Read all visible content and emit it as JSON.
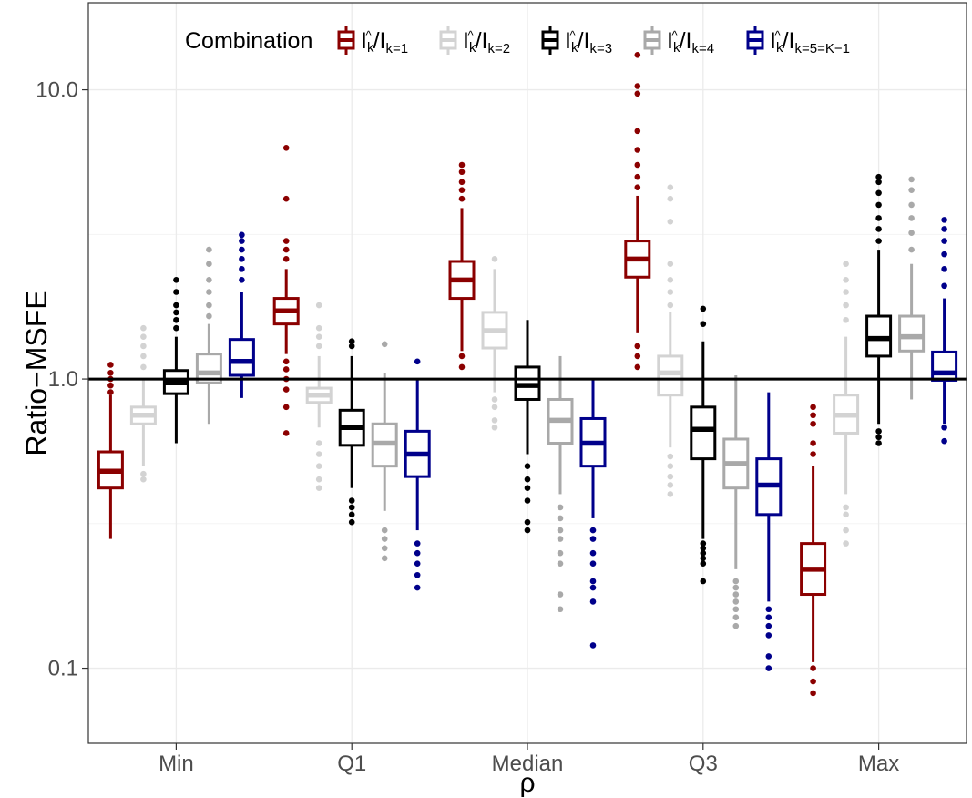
{
  "chart_data": {
    "type": "boxplot",
    "title": "",
    "xlabel": "ρ",
    "ylabel": "Ratio−MSFE",
    "yscale": "log10",
    "ylim": [
      0.055,
      20
    ],
    "yticks": [
      0.1,
      1.0,
      10.0
    ],
    "ytick_labels": [
      "0.1",
      "1.0",
      "10.0"
    ],
    "reference_line": 1.0,
    "categories": [
      "Min",
      "Q1",
      "Median",
      "Q3",
      "Max"
    ],
    "legend": {
      "title": "Combination",
      "position": "top",
      "entries": [
        {
          "base": "I",
          "hat_sup": "k",
          "sep": "/",
          "denom": "I",
          "sub": "k=1"
        },
        {
          "base": "I",
          "hat_sup": "k",
          "sep": "/",
          "denom": "I",
          "sub": "k=2"
        },
        {
          "base": "I",
          "hat_sup": "k",
          "sep": "/",
          "denom": "I",
          "sub": "k=3"
        },
        {
          "base": "I",
          "hat_sup": "k",
          "sep": "/",
          "denom": "I",
          "sub": "k=4"
        },
        {
          "base": "I",
          "hat_sup": "k",
          "sep": "/",
          "denom": "I",
          "sub": "k=5=K−1"
        }
      ]
    },
    "series": [
      {
        "name": "Î_k/I_{k=1}",
        "color": "#8b0000",
        "boxes": [
          {
            "category": "Min",
            "whisker_low": 0.28,
            "q1": 0.42,
            "median": 0.48,
            "q3": 0.56,
            "whisker_high": 0.88,
            "outliers": [
              0.9,
              0.95,
              1.0,
              1.05,
              1.12
            ]
          },
          {
            "category": "Q1",
            "whisker_low": 1.22,
            "q1": 1.55,
            "median": 1.72,
            "q3": 1.9,
            "whisker_high": 2.4,
            "outliers": [
              0.65,
              0.8,
              0.92,
              1.0,
              1.08,
              1.15,
              2.6,
              2.8,
              3.0,
              4.2,
              6.3
            ]
          },
          {
            "category": "Median",
            "whisker_low": 1.25,
            "q1": 1.9,
            "median": 2.2,
            "q3": 2.55,
            "whisker_high": 3.9,
            "outliers": [
              1.1,
              1.2,
              4.2,
              4.5,
              4.8,
              5.2,
              5.5
            ]
          },
          {
            "category": "Q3",
            "whisker_low": 1.45,
            "q1": 2.25,
            "median": 2.6,
            "q3": 3.0,
            "whisker_high": 4.3,
            "outliers": [
              1.1,
              1.2,
              1.3,
              4.6,
              5.0,
              5.5,
              6.2,
              7.2,
              9.7,
              10.3,
              13.2
            ]
          },
          {
            "category": "Max",
            "whisker_low": 0.105,
            "q1": 0.18,
            "median": 0.22,
            "q3": 0.27,
            "whisker_high": 0.5,
            "outliers": [
              0.082,
              0.09,
              0.1,
              0.55,
              0.6,
              0.7,
              0.75,
              0.8
            ]
          }
        ]
      },
      {
        "name": "Î_k/I_{k=2}",
        "color": "#d3d3d3",
        "boxes": [
          {
            "category": "Min",
            "whisker_low": 0.5,
            "q1": 0.7,
            "median": 0.75,
            "q3": 0.8,
            "whisker_high": 1.0,
            "outliers": [
              0.45,
              0.47,
              1.1,
              1.2,
              1.3,
              1.4,
              1.5
            ]
          },
          {
            "category": "Q1",
            "whisker_low": 0.68,
            "q1": 0.83,
            "median": 0.88,
            "q3": 0.93,
            "whisker_high": 1.2,
            "outliers": [
              0.42,
              0.45,
              0.5,
              0.55,
              0.6,
              1.3,
              1.4,
              1.5,
              1.8
            ]
          },
          {
            "category": "Median",
            "whisker_low": 0.9,
            "q1": 1.28,
            "median": 1.47,
            "q3": 1.7,
            "whisker_high": 2.4,
            "outliers": [
              0.68,
              0.72,
              0.8,
              0.85,
              2.6
            ]
          },
          {
            "category": "Q3",
            "whisker_low": 0.58,
            "q1": 0.88,
            "median": 1.05,
            "q3": 1.2,
            "whisker_high": 1.7,
            "outliers": [
              0.4,
              0.43,
              0.46,
              0.5,
              0.54,
              1.8,
              2.0,
              2.2,
              2.5,
              3.5,
              4.2,
              4.6
            ]
          },
          {
            "category": "Max",
            "whisker_low": 0.4,
            "q1": 0.65,
            "median": 0.75,
            "q3": 0.88,
            "whisker_high": 1.4,
            "outliers": [
              0.27,
              0.3,
              0.34,
              0.36,
              1.6,
              1.8,
              2.0,
              2.2,
              2.5
            ]
          }
        ]
      },
      {
        "name": "Î_k/I_{k=3}",
        "color": "#000000",
        "boxes": [
          {
            "category": "Min",
            "whisker_low": 0.6,
            "q1": 0.89,
            "median": 0.97,
            "q3": 1.07,
            "whisker_high": 1.4,
            "outliers": [
              1.5,
              1.6,
              1.7,
              1.8,
              2.0,
              2.2
            ]
          },
          {
            "category": "Q1",
            "whisker_low": 0.42,
            "q1": 0.59,
            "median": 0.68,
            "q3": 0.78,
            "whisker_high": 1.2,
            "outliers": [
              0.32,
              0.34,
              0.36,
              0.38,
              1.3,
              1.35
            ]
          },
          {
            "category": "Median",
            "whisker_low": 0.55,
            "q1": 0.85,
            "median": 0.95,
            "q3": 1.1,
            "whisker_high": 1.6,
            "outliers": [
              0.3,
              0.32,
              0.38,
              0.42,
              0.45,
              0.5
            ]
          },
          {
            "category": "Q3",
            "whisker_low": 0.28,
            "q1": 0.53,
            "median": 0.67,
            "q3": 0.8,
            "whisker_high": 1.35,
            "outliers": [
              0.2,
              0.23,
              0.24,
              0.25,
              0.26,
              0.27,
              1.55,
              1.75
            ]
          },
          {
            "category": "Max",
            "whisker_low": 0.7,
            "q1": 1.2,
            "median": 1.38,
            "q3": 1.65,
            "whisker_high": 2.8,
            "outliers": [
              0.6,
              0.63,
              0.66,
              3.0,
              3.3,
              3.6,
              4.0,
              4.4,
              4.8,
              5.0
            ]
          }
        ]
      },
      {
        "name": "Î_k/I_{k=4}",
        "color": "#a9a9a9",
        "boxes": [
          {
            "category": "Min",
            "whisker_low": 0.7,
            "q1": 0.97,
            "median": 1.05,
            "q3": 1.22,
            "whisker_high": 1.55,
            "outliers": [
              1.65,
              1.8,
              2.0,
              2.2,
              2.5,
              2.8
            ]
          },
          {
            "category": "Q1",
            "whisker_low": 0.35,
            "q1": 0.5,
            "median": 0.6,
            "q3": 0.7,
            "whisker_high": 1.05,
            "outliers": [
              0.24,
              0.26,
              0.28,
              0.3,
              1.32
            ]
          },
          {
            "category": "Median",
            "whisker_low": 0.4,
            "q1": 0.6,
            "median": 0.72,
            "q3": 0.85,
            "whisker_high": 1.2,
            "outliers": [
              0.16,
              0.18,
              0.23,
              0.25,
              0.28,
              0.3,
              0.33,
              0.36
            ]
          },
          {
            "category": "Q3",
            "whisker_low": 0.22,
            "q1": 0.42,
            "median": 0.51,
            "q3": 0.62,
            "whisker_high": 1.03,
            "outliers": [
              0.14,
              0.15,
              0.16,
              0.17,
              0.18,
              0.19,
              0.2
            ]
          },
          {
            "category": "Max",
            "whisker_low": 0.85,
            "q1": 1.25,
            "median": 1.4,
            "q3": 1.65,
            "whisker_high": 2.5,
            "outliers": [
              2.8,
              3.2,
              3.6,
              4.0,
              4.5,
              4.9
            ]
          }
        ]
      },
      {
        "name": "Î_k/I_{k=5=K−1}",
        "color": "#00008b",
        "boxes": [
          {
            "category": "Min",
            "whisker_low": 0.86,
            "q1": 1.03,
            "median": 1.15,
            "q3": 1.37,
            "whisker_high": 2.0,
            "outliers": [
              2.2,
              2.4,
              2.6,
              2.8,
              3.0,
              3.15
            ]
          },
          {
            "category": "Q1",
            "whisker_low": 0.3,
            "q1": 0.46,
            "median": 0.55,
            "q3": 0.66,
            "whisker_high": 1.0,
            "outliers": [
              0.19,
              0.21,
              0.23,
              0.25,
              0.27,
              1.15
            ]
          },
          {
            "category": "Median",
            "whisker_low": 0.33,
            "q1": 0.5,
            "median": 0.6,
            "q3": 0.73,
            "whisker_high": 1.0,
            "outliers": [
              0.12,
              0.17,
              0.19,
              0.2,
              0.23,
              0.25,
              0.28,
              0.3
            ]
          },
          {
            "category": "Q3",
            "whisker_low": 0.17,
            "q1": 0.34,
            "median": 0.43,
            "q3": 0.53,
            "whisker_high": 0.9,
            "outliers": [
              0.1,
              0.11,
              0.13,
              0.14,
              0.15,
              0.16
            ]
          },
          {
            "category": "Max",
            "whisker_low": 0.7,
            "q1": 0.99,
            "median": 1.05,
            "q3": 1.24,
            "whisker_high": 1.9,
            "outliers": [
              0.61,
              0.68,
              2.1,
              2.4,
              2.7,
              3.0,
              3.3,
              3.55
            ]
          }
        ]
      }
    ]
  }
}
